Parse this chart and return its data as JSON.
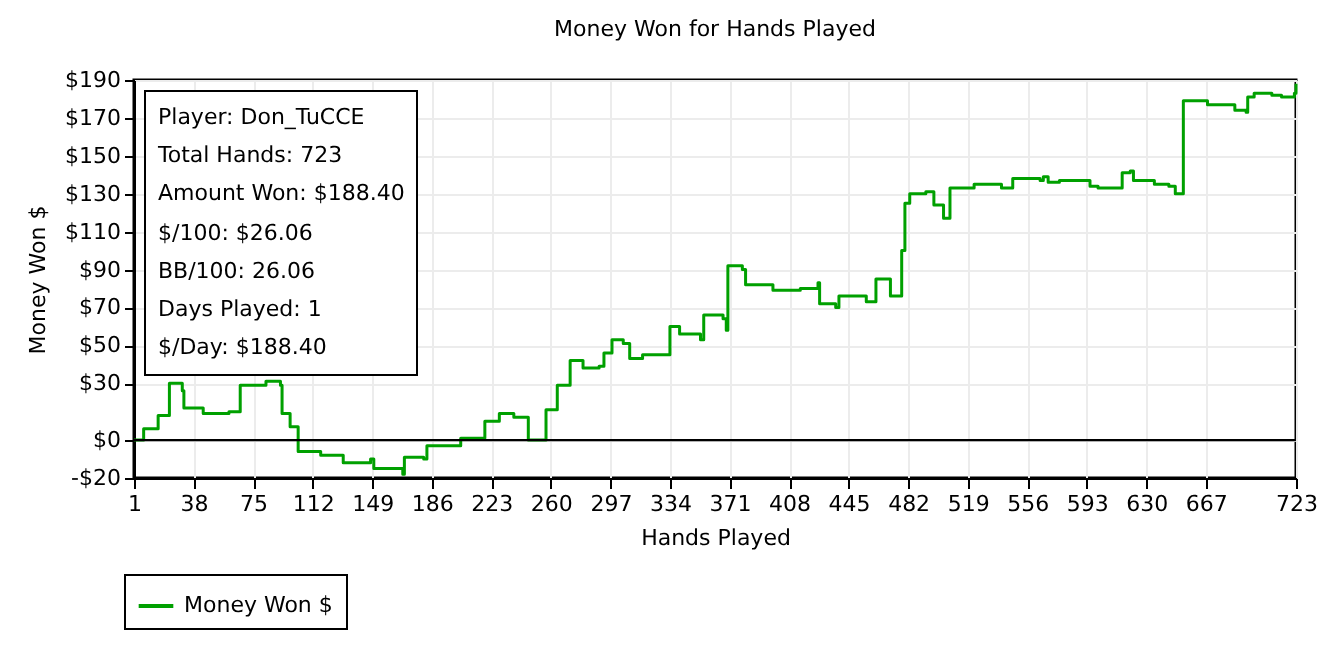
{
  "chart_data": {
    "type": "step",
    "title": "Money Won for Hands Played",
    "xlabel": "Hands Played",
    "ylabel": "Money Won $",
    "x": [
      1,
      7,
      16,
      23,
      31,
      32,
      44,
      60,
      67,
      83,
      92,
      93,
      98,
      103,
      117,
      131,
      148,
      150,
      168,
      169,
      181,
      183,
      201,
      204,
      214,
      219,
      228,
      237,
      246,
      251,
      257,
      264,
      272,
      280,
      290,
      293,
      298,
      305,
      309,
      317,
      331,
      334,
      340,
      353,
      355,
      367,
      369,
      370,
      379,
      381,
      398,
      415,
      426,
      427,
      437,
      439,
      456,
      462,
      469,
      471,
      477,
      478,
      480,
      483,
      493,
      498,
      504,
      508,
      518,
      523,
      531,
      540,
      547,
      564,
      566,
      569,
      576,
      588,
      595,
      600,
      613,
      615,
      620,
      622,
      635,
      644,
      648,
      651,
      653,
      663,
      668,
      680,
      685,
      692,
      693,
      697,
      708,
      714,
      722,
      723
    ],
    "series": [
      {
        "name": "Money Won $",
        "color": "#00a000",
        "values": [
          0,
          6,
          13,
          30,
          26,
          17,
          14,
          15,
          29,
          31,
          29,
          14,
          7,
          -6,
          -8,
          -12,
          -10,
          -15,
          -18,
          -9,
          -10,
          -3,
          -3,
          1,
          1,
          10,
          14,
          12,
          0,
          0,
          16,
          29,
          42,
          38,
          39,
          46,
          53,
          51,
          43,
          45,
          45,
          60,
          56,
          53,
          66,
          64,
          58,
          92,
          90,
          82,
          79,
          80,
          83,
          72,
          70,
          76,
          73,
          85,
          85,
          76,
          76,
          100,
          125,
          130,
          131,
          124,
          117,
          133,
          133,
          135,
          135,
          133,
          138,
          137,
          139,
          136,
          137,
          137,
          134,
          133,
          133,
          141,
          142,
          137,
          135,
          134,
          130,
          130,
          179,
          179,
          177,
          177,
          174,
          173,
          181,
          183,
          182,
          181,
          183,
          188
        ]
      }
    ],
    "xlim": [
      1,
      723
    ],
    "xticks": [
      1,
      38,
      75,
      112,
      149,
      186,
      223,
      260,
      297,
      334,
      371,
      408,
      445,
      482,
      519,
      556,
      593,
      630,
      667,
      723
    ],
    "ylim": [
      -20,
      190
    ],
    "yticks": [
      {
        "value": -20,
        "label": "-$20"
      },
      {
        "value": 0,
        "label": "$0"
      },
      {
        "value": 30,
        "label": "$30"
      },
      {
        "value": 50,
        "label": "$50"
      },
      {
        "value": 70,
        "label": "$70"
      },
      {
        "value": 90,
        "label": "$90"
      },
      {
        "value": 110,
        "label": "$110"
      },
      {
        "value": 130,
        "label": "$130"
      },
      {
        "value": 150,
        "label": "$150"
      },
      {
        "value": 170,
        "label": "$170"
      },
      {
        "value": 190,
        "label": "$190"
      }
    ],
    "ref_lines": [
      {
        "axis": "y",
        "value": 0,
        "color": "#000000"
      }
    ],
    "annotations": [
      "Player: Don_TuCCE",
      "Total Hands: 723",
      "Amount Won: $188.40",
      "$/100: $26.06",
      "BB/100: 26.06",
      "Days Played: 1",
      "$/Day: $188.40"
    ],
    "grid": true,
    "legend": "bottom"
  }
}
